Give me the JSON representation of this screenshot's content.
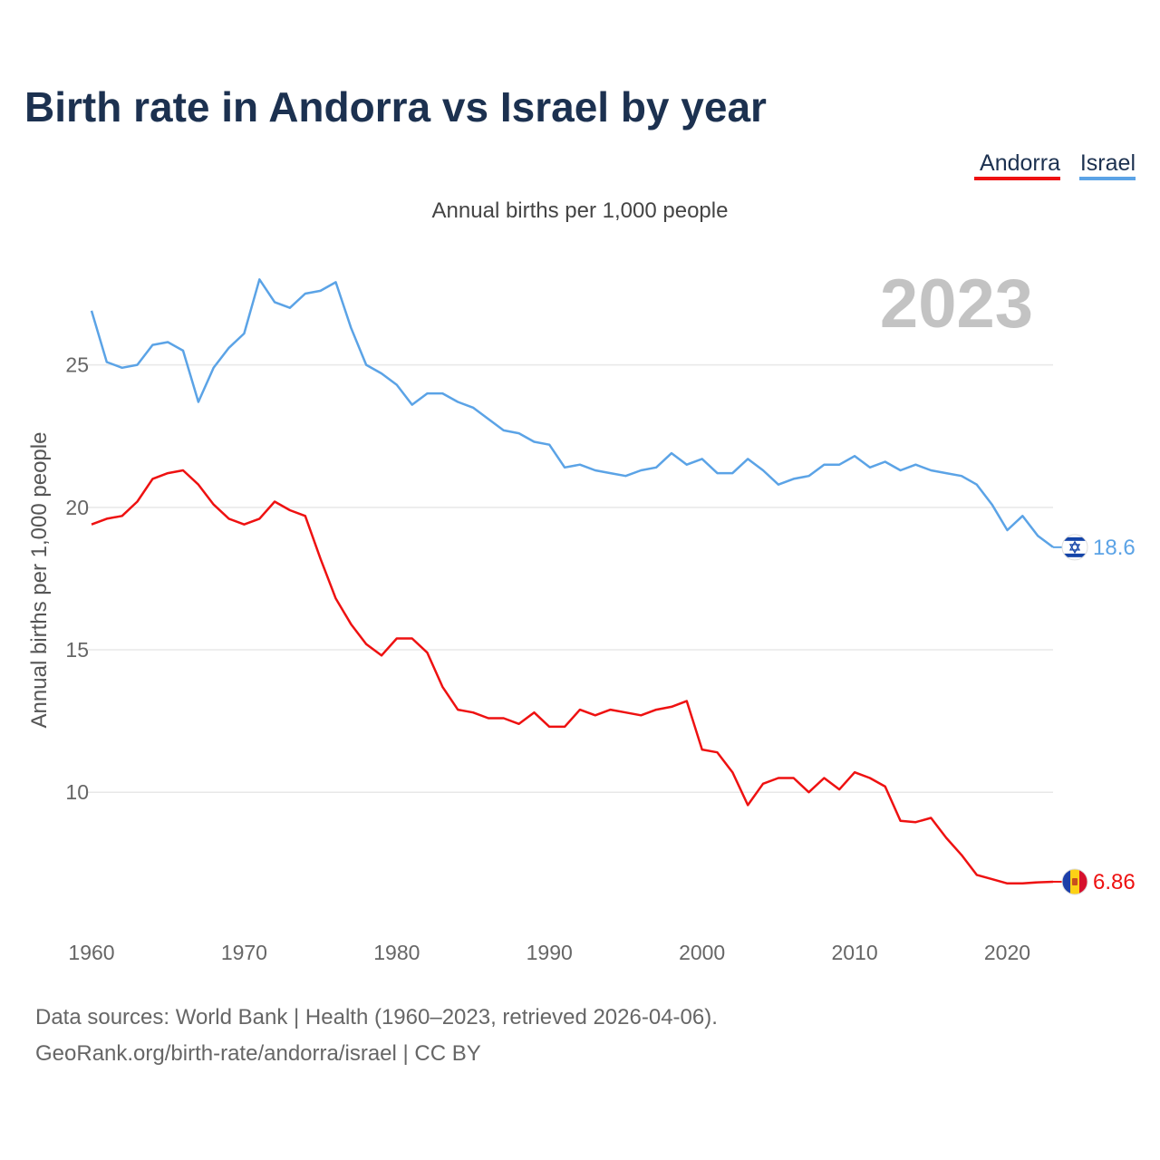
{
  "chart_data": {
    "type": "line",
    "title": "Birth rate in Andorra vs Israel by year",
    "subtitle": "Annual births per 1,000 people",
    "ylabel": "Annual births per 1,000 people",
    "xlabel": "",
    "year_label": "2023",
    "xlim": [
      1960,
      2023
    ],
    "ylim": [
      6.0,
      28.9
    ],
    "yticks": [
      10,
      15,
      20,
      25
    ],
    "xticks": [
      1960,
      1970,
      1980,
      1990,
      2000,
      2010,
      2020
    ],
    "legend_position": "top-right",
    "x": [
      1960,
      1961,
      1962,
      1963,
      1964,
      1965,
      1966,
      1967,
      1968,
      1969,
      1970,
      1971,
      1972,
      1973,
      1974,
      1975,
      1976,
      1977,
      1978,
      1979,
      1980,
      1981,
      1982,
      1983,
      1984,
      1985,
      1986,
      1987,
      1988,
      1989,
      1990,
      1991,
      1992,
      1993,
      1994,
      1995,
      1996,
      1997,
      1998,
      1999,
      2000,
      2001,
      2002,
      2003,
      2004,
      2005,
      2006,
      2007,
      2008,
      2009,
      2010,
      2011,
      2012,
      2013,
      2014,
      2015,
      2016,
      2017,
      2018,
      2019,
      2020,
      2021,
      2022,
      2023
    ],
    "series": [
      {
        "name": "Andorra",
        "color": "#ee1111",
        "end_label": "6.86",
        "flag_icon": "andorra-flag-icon",
        "values": [
          19.4,
          19.6,
          19.7,
          20.2,
          21.0,
          21.2,
          21.3,
          20.8,
          20.1,
          19.6,
          19.4,
          19.6,
          20.2,
          19.9,
          19.7,
          18.2,
          16.8,
          15.9,
          15.2,
          14.8,
          15.4,
          15.4,
          14.9,
          13.7,
          12.9,
          12.8,
          12.6,
          12.6,
          12.4,
          12.8,
          12.3,
          12.3,
          12.9,
          12.7,
          12.9,
          12.8,
          12.7,
          12.9,
          13.0,
          13.2,
          11.5,
          11.4,
          10.7,
          9.55,
          10.3,
          10.5,
          10.5,
          10.0,
          10.5,
          10.1,
          10.7,
          10.5,
          10.2,
          9.0,
          8.95,
          9.1,
          8.4,
          7.8,
          7.1,
          6.95,
          6.8,
          6.8,
          6.84,
          6.86
        ]
      },
      {
        "name": "Israel",
        "color": "#5ba3e6",
        "end_label": "18.6",
        "flag_icon": "israel-flag-icon",
        "values": [
          26.9,
          25.1,
          24.9,
          25.0,
          25.7,
          25.8,
          25.5,
          23.7,
          24.9,
          25.6,
          26.1,
          28.0,
          27.2,
          27.0,
          27.5,
          27.6,
          27.9,
          26.3,
          25.0,
          24.7,
          24.3,
          23.6,
          24.0,
          24.0,
          23.7,
          23.5,
          23.1,
          22.7,
          22.6,
          22.3,
          22.2,
          21.4,
          21.5,
          21.3,
          21.2,
          21.1,
          21.3,
          21.4,
          21.9,
          21.5,
          21.7,
          21.2,
          21.2,
          21.7,
          21.3,
          20.8,
          21.0,
          21.1,
          21.5,
          21.5,
          21.8,
          21.4,
          21.6,
          21.3,
          21.5,
          21.3,
          21.2,
          21.1,
          20.8,
          20.1,
          19.2,
          19.7,
          19.0,
          18.6
        ]
      }
    ]
  },
  "source": {
    "line1": "Data sources: World Bank | Health (1960–2023, retrieved 2026-04-06).",
    "line2": "GeoRank.org/birth-rate/andorra/israel | CC BY"
  }
}
